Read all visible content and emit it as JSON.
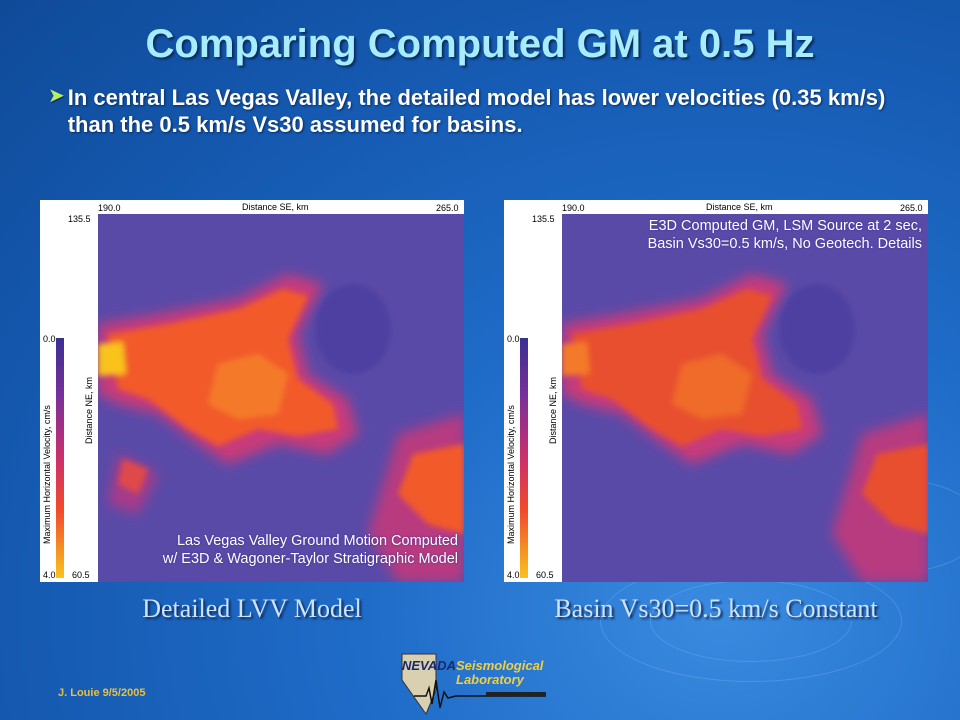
{
  "slide": {
    "title": "Comparing Computed GM at 0.5 Hz",
    "bullet": "In central Las Vegas Valley, the detailed model has lower velocities (0.35 km/s) than the 0.5 km/s Vs30 assumed for basins.",
    "author": "J. Louie  9/5/2005"
  },
  "panels": [
    {
      "x_axis_title": "Distance SE, km",
      "x_min_label": "190.0",
      "x_max_label": "265.0",
      "y_top_label": "135.5",
      "y_bottom_label": "60.5",
      "y_axis_title": "Distance NE, km",
      "cbar_title": "Maximum Horizontal Velocity, cm/s",
      "cbar_top": "0.0",
      "cbar_bottom": "4.0",
      "note_lines": [
        "Las Vegas Valley Ground Motion Computed",
        "w/ E3D & Wagoner-Taylor Stratigraphic Model"
      ],
      "caption": "Detailed LVV Model"
    },
    {
      "x_axis_title": "Distance SE, km",
      "x_min_label": "190.0",
      "x_max_label": "265.0",
      "y_top_label": "135.5",
      "y_bottom_label": "60.5",
      "y_axis_title": "Distance NE, km",
      "cbar_title": "Maximum Horizontal Velocity, cm/s",
      "cbar_top": "0.0",
      "cbar_bottom": "4.0",
      "note_lines": [
        "E3D Computed GM, LSM Source at 2 sec,",
        "Basin Vs30=0.5 km/s, No Geotech. Details"
      ],
      "caption": "Basin Vs30=0.5 km/s Constant"
    }
  ],
  "logo": {
    "line1": "NEVADA",
    "line2": "Seismological",
    "line3": "Laboratory"
  },
  "colors": {
    "title": "#a8ecff",
    "bullet_icon": "#b8f060",
    "map_background": "#5a4aa8",
    "map_hot": "#f25a2a",
    "map_peak": "#f9c31c",
    "author": "#e8c040"
  }
}
